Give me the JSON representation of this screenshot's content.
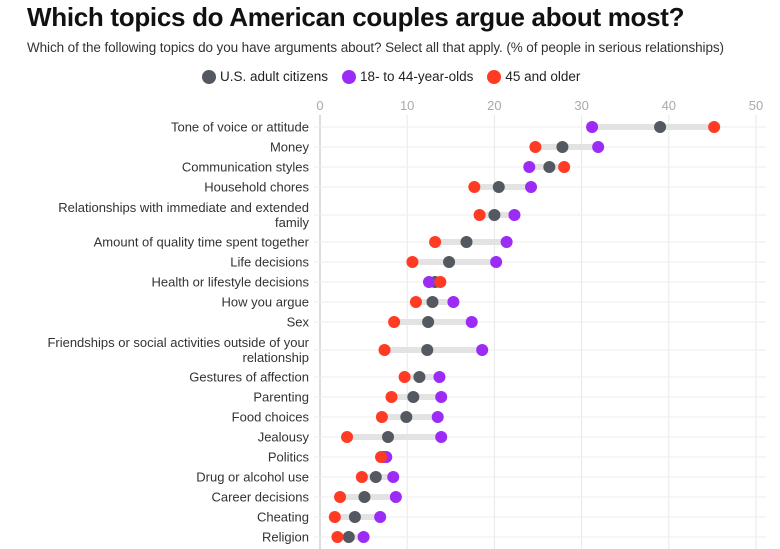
{
  "header": {
    "title": "Which topics do American couples argue about most?",
    "subtitle": "Which of the following topics do you have arguments about? Select all that apply. (% of people in serious relationships)"
  },
  "colors": {
    "us_adults": "#535861",
    "age_18_44": "#9b2bf5",
    "age_45_plus": "#ff3b24",
    "connector": "#e3e3e3",
    "gridline": "#e8e8e8",
    "axis": "#bbbbbb"
  },
  "chart_data": {
    "type": "dot-plot",
    "title": "Which topics do American couples argue about most?",
    "subtitle": "Which of the following topics do you have arguments about? Select all that apply. (% of people in serious relationships)",
    "xlabel": "",
    "ylabel": "",
    "xlim": [
      0,
      50
    ],
    "x_ticks": [
      0,
      10,
      20,
      30,
      40,
      50
    ],
    "x_tick_labels": [
      "0",
      "10",
      "20",
      "30",
      "40",
      "50"
    ],
    "x_axis_position": "top",
    "grid": true,
    "legend_position": "top-center",
    "categories": [
      [
        "Tone of voice or attitude"
      ],
      [
        "Money"
      ],
      [
        "Communication styles"
      ],
      [
        "Household chores"
      ],
      [
        "Relationships with immediate and extended",
        "family"
      ],
      [
        "Amount of quality time spent together"
      ],
      [
        "Life decisions"
      ],
      [
        "Health or lifestyle decisions"
      ],
      [
        "How you argue"
      ],
      [
        "Sex"
      ],
      [
        "Friendships or social activities outside of your",
        "relationship"
      ],
      [
        "Gestures of affection"
      ],
      [
        "Parenting"
      ],
      [
        "Food choices"
      ],
      [
        "Jealousy"
      ],
      [
        "Politics"
      ],
      [
        "Drug or alcohol use"
      ],
      [
        "Career decisions"
      ],
      [
        "Cheating"
      ],
      [
        "Religion"
      ]
    ],
    "series": [
      {
        "key": "us_adults",
        "name": "U.S. adult citizens",
        "values": [
          39.0,
          27.8,
          26.3,
          20.5,
          20.0,
          16.8,
          14.8,
          13.2,
          12.9,
          12.4,
          12.3,
          11.4,
          10.7,
          9.9,
          7.8,
          7.3,
          6.4,
          5.1,
          4.0,
          3.3
        ]
      },
      {
        "key": "age_18_44",
        "name": "18- to 44-year-olds",
        "values": [
          31.2,
          31.9,
          24.0,
          24.2,
          22.3,
          21.4,
          20.2,
          12.5,
          15.3,
          17.4,
          18.6,
          13.7,
          13.9,
          13.5,
          13.9,
          7.6,
          8.4,
          8.7,
          6.9,
          5.0
        ]
      },
      {
        "key": "age_45_plus",
        "name": "45 and older",
        "values": [
          45.2,
          24.7,
          28.0,
          17.7,
          18.3,
          13.2,
          10.6,
          13.8,
          11.0,
          8.5,
          7.4,
          9.7,
          8.2,
          7.1,
          3.1,
          7.0,
          4.8,
          2.3,
          1.7,
          2.0
        ]
      }
    ]
  },
  "legend": [
    {
      "key": "us_adults",
      "label": "U.S. adult citizens"
    },
    {
      "key": "age_18_44",
      "label": "18- to 44-year-olds"
    },
    {
      "key": "age_45_plus",
      "label": "45 and older"
    }
  ]
}
